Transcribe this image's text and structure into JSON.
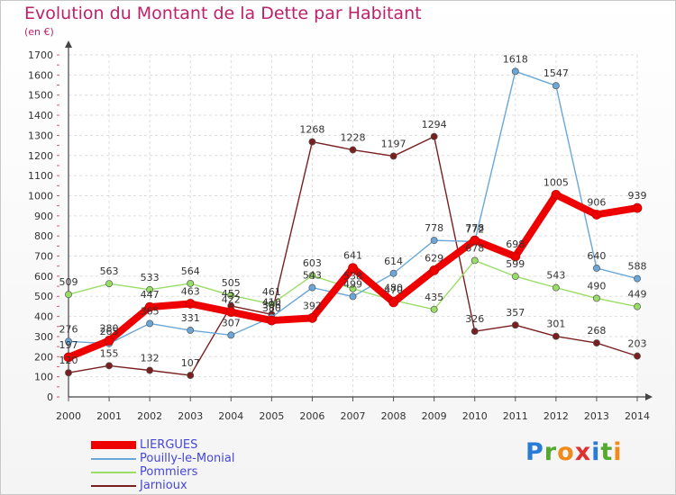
{
  "header": {
    "title": "Evolution du Montant de la Dette par Habitant",
    "unit": "(en €)"
  },
  "brand": {
    "letters": [
      "P",
      "r",
      "o",
      "x",
      "i",
      "t",
      "i"
    ]
  },
  "chart_data": {
    "type": "line",
    "title": "Evolution du Montant de la Dette par Habitant",
    "ylabel": "(en €)",
    "xlabel": "",
    "x": [
      2000,
      2001,
      2002,
      2003,
      2004,
      2005,
      2006,
      2007,
      2008,
      2009,
      2010,
      2011,
      2012,
      2013,
      2014
    ],
    "ylim": [
      0,
      1700
    ],
    "yticks": [
      0,
      100,
      200,
      300,
      400,
      500,
      600,
      700,
      800,
      900,
      1000,
      1100,
      1200,
      1300,
      1400,
      1500,
      1600,
      1700
    ],
    "grid": true,
    "legend_position": "bottom-left",
    "series": [
      {
        "name": "Jarnioux",
        "color": "#7a1f1f",
        "values": [
          120,
          155,
          132,
          107,
          452,
          410,
          1268,
          1228,
          1197,
          1294,
          326,
          357,
          301,
          268,
          203
        ]
      },
      {
        "name": "Pommiers",
        "color": "#99dd66",
        "values": [
          509,
          563,
          533,
          564,
          505,
          461,
          603,
          538,
          480,
          435,
          678,
          599,
          543,
          490,
          449
        ]
      },
      {
        "name": "Pouilly-le-Monial",
        "color": "#6aa7d8",
        "values": [
          276,
          265,
          365,
          331,
          307,
          396,
          543,
          499,
          614,
          778,
          772,
          1618,
          1547,
          640,
          588
        ]
      },
      {
        "name": "LIERGUES",
        "color": "#ee0000",
        "values": [
          197,
          280,
          447,
          463,
          422,
          380,
          392,
          641,
          470,
          629,
          778,
          698,
          1005,
          906,
          939
        ]
      }
    ],
    "legend_order": [
      "LIERGUES",
      "Pouilly-le-Monial",
      "Pommiers",
      "Jarnioux"
    ]
  }
}
